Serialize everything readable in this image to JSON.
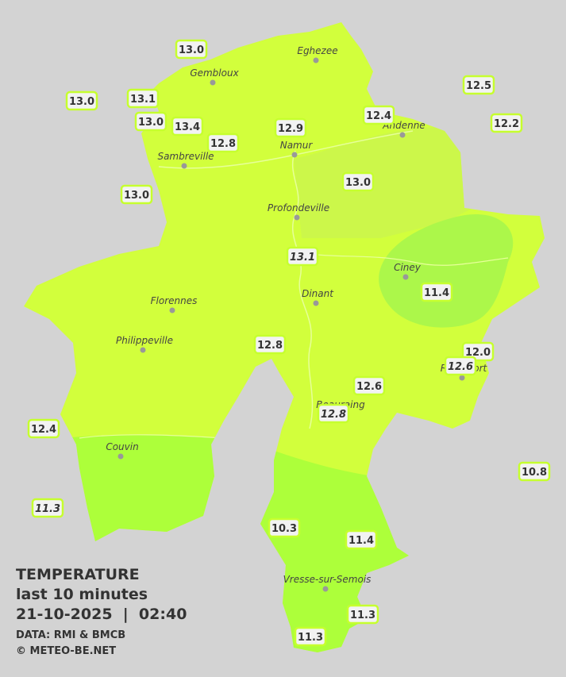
{
  "map": {
    "cities": [
      {
        "name": "Eghezee"
      },
      {
        "name": "Gembloux"
      },
      {
        "name": "Andenne"
      },
      {
        "name": "Namur"
      },
      {
        "name": "Sambreville"
      },
      {
        "name": "Profondeville"
      },
      {
        "name": "Ciney"
      },
      {
        "name": "Dinant"
      },
      {
        "name": "Florennes"
      },
      {
        "name": "Philippeville"
      },
      {
        "name": "Rochefort"
      },
      {
        "name": "Beauraing"
      },
      {
        "name": "Couvin"
      },
      {
        "name": "Vresse-sur-Semois"
      }
    ],
    "stations": [
      {
        "label": "13.0"
      },
      {
        "label": "13.0"
      },
      {
        "label": "13.1"
      },
      {
        "label": "13.0"
      },
      {
        "label": "13.4"
      },
      {
        "label": "12.8"
      },
      {
        "label": "12.9"
      },
      {
        "label": "12.4"
      },
      {
        "label": "12.5"
      },
      {
        "label": "12.2"
      },
      {
        "label": "13.0"
      },
      {
        "label": "13.0"
      },
      {
        "label": "13.1",
        "italic": true
      },
      {
        "label": "11.4"
      },
      {
        "label": "12.8"
      },
      {
        "label": "12.0"
      },
      {
        "label": "12.6",
        "italic": true
      },
      {
        "label": "12.6"
      },
      {
        "label": "12.8",
        "italic": true
      },
      {
        "label": "12.4"
      },
      {
        "label": "10.8"
      },
      {
        "label": "11.3",
        "italic": true
      },
      {
        "label": "10.3"
      },
      {
        "label": "11.4"
      },
      {
        "label": "11.3"
      },
      {
        "label": "11.3"
      }
    ],
    "legend": {
      "title": "TEMPERATURE",
      "subtitle": "last 10 minutes",
      "timestamp": "21-10-2025  |  02:40",
      "source": "DATA: RMI & BMCB",
      "credit": "© METEO-BE.NET"
    }
  }
}
